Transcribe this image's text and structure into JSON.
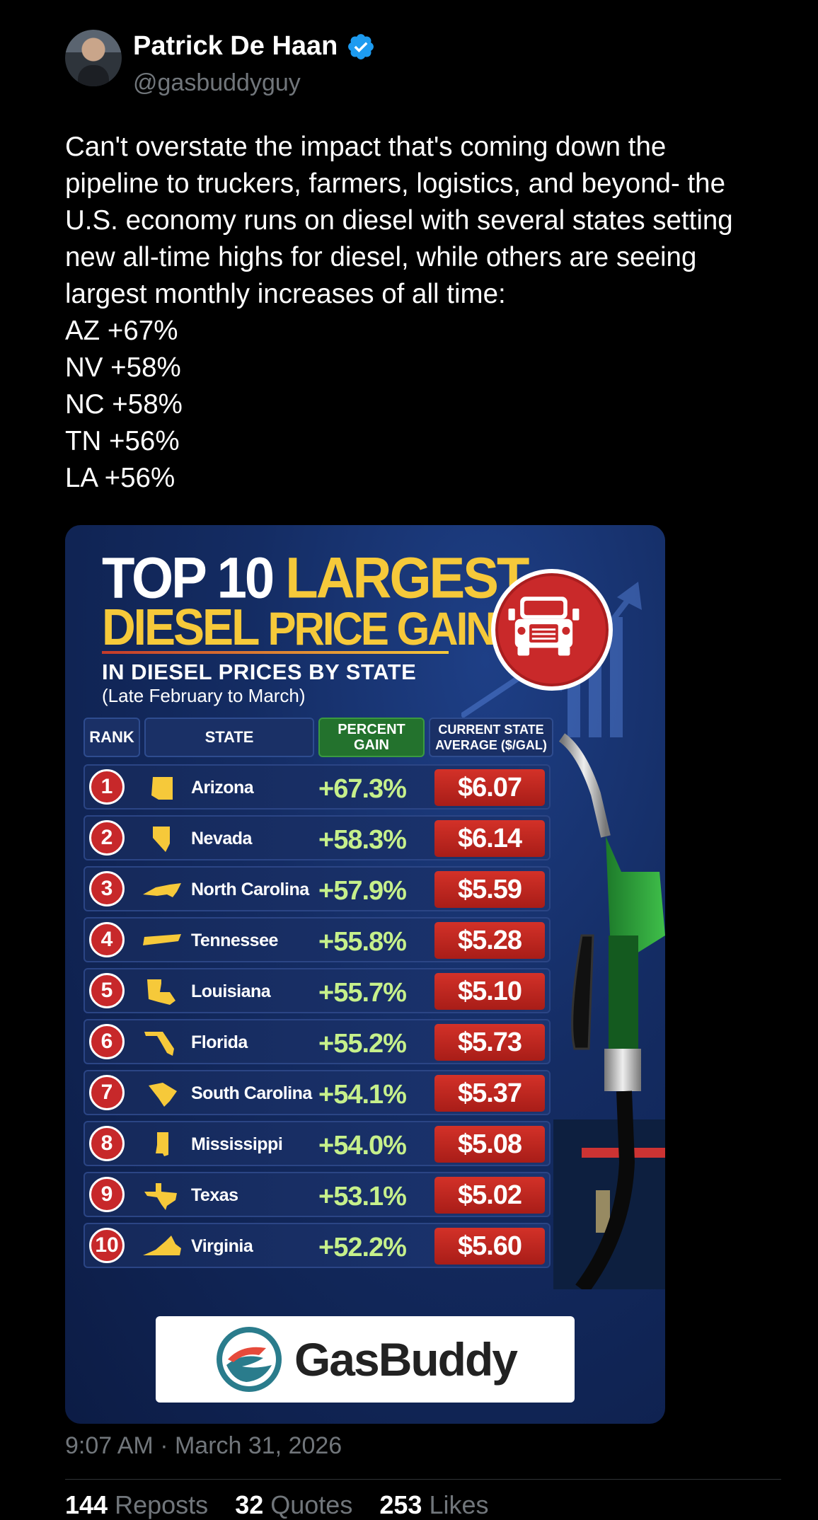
{
  "author": {
    "name": "Patrick De Haan",
    "handle": "@gasbuddyguy",
    "verified": true
  },
  "tweet": {
    "lines": [
      "Can't overstate the impact that's coming down the",
      "pipeline to truckers, farmers, logistics, and beyond- the",
      "U.S. economy runs on diesel with several states setting",
      "new all-time highs for diesel, while others are seeing",
      "largest monthly increases of all time:",
      "AZ +67%",
      "NV +58%",
      "NC +58%",
      "TN +56%",
      "LA +56%"
    ]
  },
  "infographic": {
    "title_white": "TOP 10 ",
    "title_yellow": "LARGEST",
    "title2_a": "DIESEL ",
    "title2_b": "PRICE GAINS",
    "subtitle": "IN DIESEL PRICES BY STATE",
    "date_range": "(Late February to March)",
    "headers": {
      "rank": "RANK",
      "state": "STATE",
      "pct_line1": "PERCENT",
      "pct_line2": "GAIN",
      "avg_line1": "CURRENT STATE",
      "avg_line2": "AVERAGE ($/GAL)"
    },
    "rows": [
      {
        "rank": "1",
        "state": "Arizona",
        "gain": "+67.3%",
        "price": "$6.07"
      },
      {
        "rank": "2",
        "state": "Nevada",
        "gain": "+58.3%",
        "price": "$6.14"
      },
      {
        "rank": "3",
        "state": "North Carolina",
        "gain": "+57.9%",
        "price": "$5.59"
      },
      {
        "rank": "4",
        "state": "Tennessee",
        "gain": "+55.8%",
        "price": "$5.28"
      },
      {
        "rank": "5",
        "state": "Louisiana",
        "gain": "+55.7%",
        "price": "$5.10"
      },
      {
        "rank": "6",
        "state": "Florida",
        "gain": "+55.2%",
        "price": "$5.73"
      },
      {
        "rank": "7",
        "state": "South Carolina",
        "gain": "+54.1%",
        "price": "$5.37"
      },
      {
        "rank": "8",
        "state": "Mississippi",
        "gain": "+54.0%",
        "price": "$5.08"
      },
      {
        "rank": "9",
        "state": "Texas",
        "gain": "+53.1%",
        "price": "$5.02"
      },
      {
        "rank": "10",
        "state": "Virginia",
        "gain": "+52.2%",
        "price": "$5.60"
      }
    ],
    "brand": "GasBuddy",
    "colors": {
      "accent_yellow": "#f6c93a",
      "gain_green": "#c6f08b",
      "price_red": "#c9292a",
      "panel_blue": "#142c63"
    }
  },
  "meta": {
    "timestamp": "9:07 AM · March 31, 2026"
  },
  "stats": {
    "reposts_count": "144",
    "reposts_label": "Reposts",
    "quotes_count": "32",
    "quotes_label": "Quotes",
    "likes_count": "253",
    "likes_label": "Likes"
  }
}
